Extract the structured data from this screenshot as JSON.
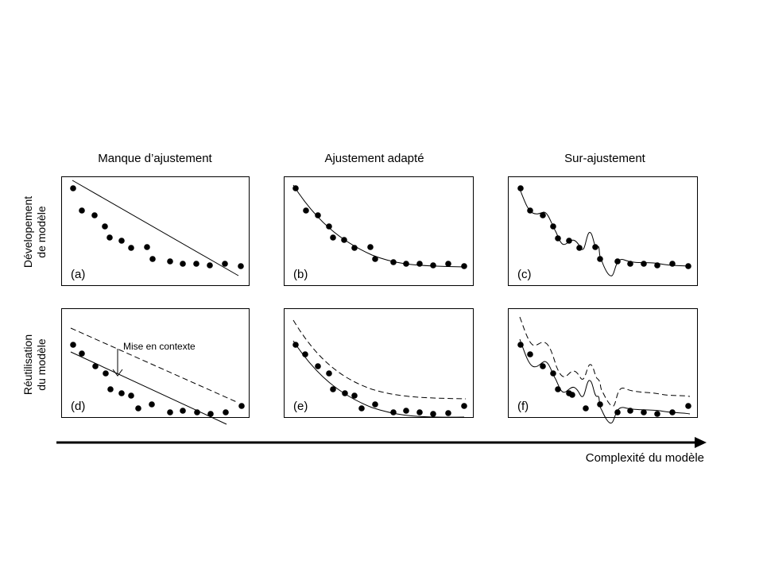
{
  "columns": {
    "underfit": "Manque d’ajustement",
    "goodfit": "Ajustement adapté",
    "overfit": "Sur-ajustement"
  },
  "rows": {
    "development": [
      "Dévelopement",
      "de modèle"
    ],
    "reuse": [
      "Réutilisation",
      "du modèle"
    ]
  },
  "panels": {
    "a": "(a)",
    "b": "(b)",
    "c": "(c)",
    "d": "(d)",
    "e": "(e)",
    "f": "(f)"
  },
  "annotation": "Mise en contexte",
  "axis_label": "Complexité du modèle"
}
